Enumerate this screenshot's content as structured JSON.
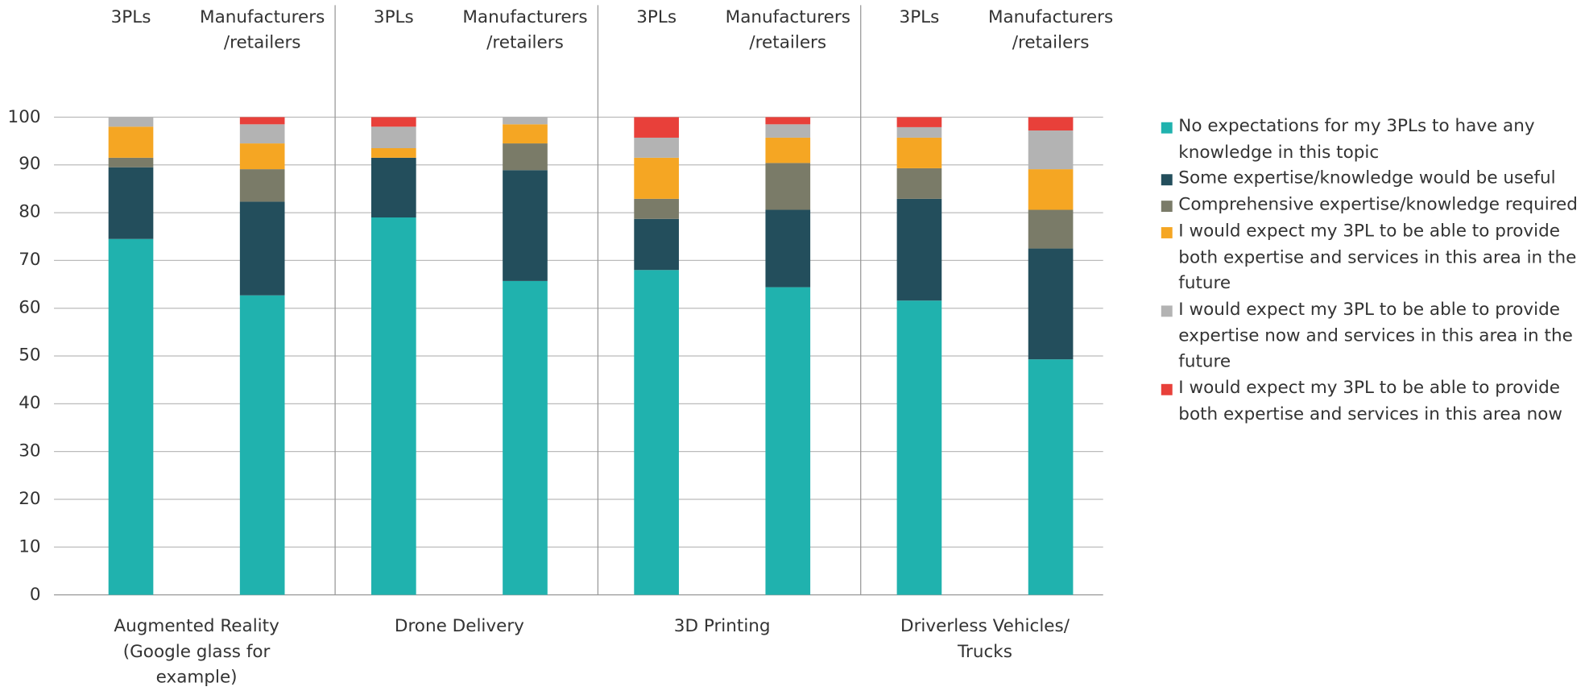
{
  "chart_data": {
    "type": "bar",
    "stacked": true,
    "groups": [
      "Augmented Reality (Google glass for example)",
      "Drone Delivery",
      "3D Printing",
      "Driverless Vehicles/ Trucks"
    ],
    "categories": [
      "3PLs",
      "Manufacturers /retailers",
      "3PLs",
      "Manufacturers /retailers",
      "3PLs",
      "Manufacturers /retailers",
      "3PLs",
      "Manufacturers /retailers"
    ],
    "series": [
      {
        "name": "No expectations for my 3PLs to have any knowledge in this topic",
        "color": "#20b2ae",
        "values": [
          74.5,
          62.7,
          79,
          65.7,
          68,
          64.4,
          61.6,
          49.3
        ]
      },
      {
        "name": "Some expertise/knowledge would be useful",
        "color": "#234e5c",
        "values": [
          15,
          19.6,
          12.5,
          23.2,
          10.7,
          16.2,
          21.3,
          23.2
        ]
      },
      {
        "name": "Comprehensive expertise/knowledge required",
        "color": "#7a7b68",
        "values": [
          2,
          6.8,
          0,
          5.6,
          4.2,
          9.8,
          6.4,
          8.1
        ]
      },
      {
        "name": "I would expect my 3PL to be able to provide both expertise and services in this area in the future",
        "color": "#f5a623",
        "values": [
          6.5,
          5.4,
          2,
          4,
          8.6,
          5.3,
          6.4,
          8.5
        ]
      },
      {
        "name": "I would expect my 3PL to be able to provide expertise now and services in this area in the future",
        "color": "#b3b3b3",
        "values": [
          2,
          4,
          4.5,
          1.5,
          4.2,
          2.8,
          2.2,
          8.1
        ]
      },
      {
        "name": "I would expect my 3PL to be able to provide both expertise and services in this area now",
        "color": "#e8403a",
        "values": [
          0,
          1.5,
          2,
          0,
          4.3,
          1.5,
          2.1,
          2.8
        ]
      }
    ],
    "ylim": [
      0,
      100
    ],
    "yticks": [
      0,
      10,
      20,
      30,
      40,
      50,
      60,
      70,
      80,
      90,
      100
    ],
    "grid": true,
    "legend": "right"
  }
}
